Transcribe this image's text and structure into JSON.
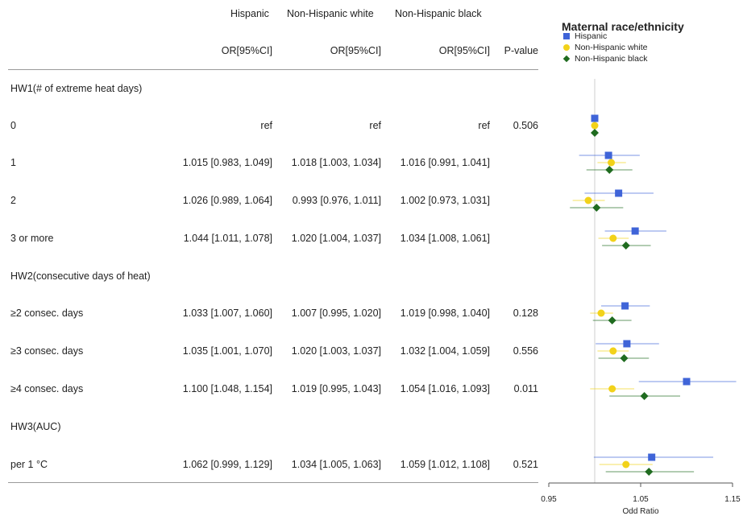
{
  "table": {
    "groups": [
      "Hispanic",
      "Non-Hispanic white",
      "Non-Hispanic black"
    ],
    "ci_headers": [
      "OR[95%CI]",
      "OR[95%CI]",
      "OR[95%CI]"
    ],
    "pvalue_header": "P-value",
    "rows": [
      {
        "label": "HW1(# of extreme heat days)",
        "section": true,
        "cells": [
          "",
          "",
          ""
        ],
        "p": ""
      },
      {
        "label": "0",
        "section": false,
        "cells": [
          "ref",
          "ref",
          "ref"
        ],
        "p": "0.506"
      },
      {
        "label": "1",
        "section": false,
        "cells": [
          "1.015 [0.983, 1.049]",
          "1.018 [1.003, 1.034]",
          "1.016 [0.991, 1.041]"
        ],
        "p": ""
      },
      {
        "label": "2",
        "section": false,
        "cells": [
          "1.026 [0.989, 1.064]",
          "0.993 [0.976, 1.011]",
          "1.002 [0.973, 1.031]"
        ],
        "p": ""
      },
      {
        "label": "3 or more",
        "section": false,
        "cells": [
          "1.044 [1.011, 1.078]",
          "1.020 [1.004, 1.037]",
          "1.034 [1.008, 1.061]"
        ],
        "p": ""
      },
      {
        "label": "HW2(consecutive days of heat)",
        "section": true,
        "cells": [
          "",
          "",
          ""
        ],
        "p": ""
      },
      {
        "label": "≥2 consec. days",
        "section": false,
        "cells": [
          "1.033 [1.007, 1.060]",
          "1.007 [0.995, 1.020]",
          "1.019 [0.998, 1.040]"
        ],
        "p": "0.128"
      },
      {
        "label": "≥3 consec. days",
        "section": false,
        "cells": [
          "1.035 [1.001, 1.070]",
          "1.020 [1.003, 1.037]",
          "1.032 [1.004, 1.059]"
        ],
        "p": "0.556"
      },
      {
        "label": "≥4 consec. days",
        "section": false,
        "cells": [
          "1.100 [1.048, 1.154]",
          "1.019 [0.995, 1.043]",
          "1.054 [1.016, 1.093]"
        ],
        "p": "0.011"
      },
      {
        "label": "HW3(AUC)",
        "section": true,
        "cells": [
          "",
          "",
          ""
        ],
        "p": ""
      },
      {
        "label": "per 1 °C",
        "section": false,
        "cells": [
          "1.062 [0.999, 1.129]",
          "1.034 [1.005, 1.063]",
          "1.059 [1.012, 1.108]"
        ],
        "p": "0.521"
      }
    ]
  },
  "chart_data": {
    "type": "scatter",
    "subtype": "forest-plot",
    "title": "",
    "xlabel": "Odd Ratio",
    "ylabel": "",
    "xlim": [
      0.95,
      1.15
    ],
    "xticks": [
      0.95,
      1.05,
      1.15
    ],
    "xtick_labels": [
      "0.95",
      "1.05",
      "1.15"
    ],
    "reference_line": 1.0,
    "grid": false,
    "legend": {
      "title": "Maternal race/ethnicity",
      "position": "top-right",
      "entries": [
        {
          "name": "Hispanic",
          "color": "#3f64d8",
          "marker": "square"
        },
        {
          "name": "Non-Hispanic white",
          "color": "#f2d21a",
          "marker": "circle"
        },
        {
          "name": "Non-Hispanic black",
          "color": "#1f6b1f",
          "marker": "diamond"
        }
      ]
    },
    "categories": [
      "0",
      "1",
      "2",
      "3 or more",
      "≥2 consec. days",
      "≥3 consec. days",
      "≥4 consec. days",
      "per 1 °C"
    ],
    "series": [
      {
        "name": "Hispanic",
        "color": "#3f64d8",
        "marker": "square",
        "values": [
          1.0,
          1.015,
          1.026,
          1.044,
          1.033,
          1.035,
          1.1,
          1.062
        ],
        "lower": [
          1.0,
          0.983,
          0.989,
          1.011,
          1.007,
          1.001,
          1.048,
          0.999
        ],
        "upper": [
          1.0,
          1.049,
          1.064,
          1.078,
          1.06,
          1.07,
          1.154,
          1.129
        ]
      },
      {
        "name": "Non-Hispanic white",
        "color": "#f2d21a",
        "marker": "circle",
        "values": [
          1.0,
          1.018,
          0.993,
          1.02,
          1.007,
          1.02,
          1.019,
          1.034
        ],
        "lower": [
          1.0,
          1.003,
          0.976,
          1.004,
          0.995,
          1.003,
          0.995,
          1.005
        ],
        "upper": [
          1.0,
          1.034,
          1.011,
          1.037,
          1.02,
          1.037,
          1.043,
          1.063
        ]
      },
      {
        "name": "Non-Hispanic black",
        "color": "#1f6b1f",
        "marker": "diamond",
        "values": [
          1.0,
          1.016,
          1.002,
          1.034,
          1.019,
          1.032,
          1.054,
          1.059
        ],
        "lower": [
          1.0,
          0.991,
          0.973,
          1.008,
          0.998,
          1.004,
          1.016,
          1.012
        ],
        "upper": [
          1.0,
          1.041,
          1.031,
          1.061,
          1.04,
          1.059,
          1.093,
          1.108
        ]
      }
    ]
  }
}
